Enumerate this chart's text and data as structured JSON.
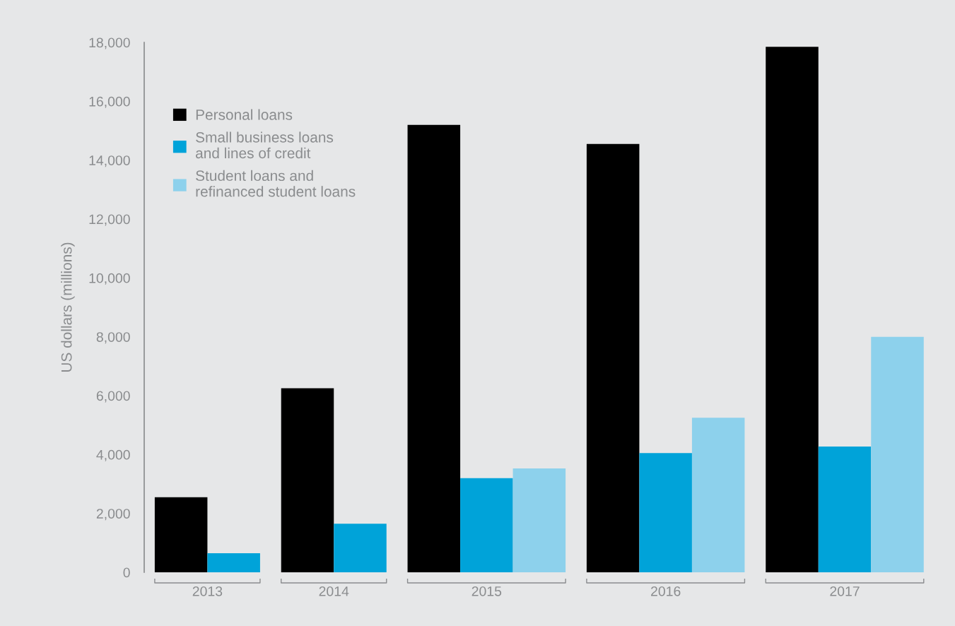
{
  "chart_data": {
    "type": "bar",
    "ylabel": "US dollars (millions)",
    "categories": [
      "2013",
      "2014",
      "2015",
      "2016",
      "2017"
    ],
    "series": [
      {
        "name": "Personal loans",
        "color": "#000000",
        "values": [
          2550,
          6250,
          15200,
          14550,
          17850
        ]
      },
      {
        "name": "Small business loans\nand lines of credit",
        "color": "#00a3d9",
        "values": [
          650,
          1650,
          3200,
          4050,
          4270
        ]
      },
      {
        "name": "Student loans and\nrefinanced student loans",
        "color": "#8dd1ec",
        "values": [
          null,
          null,
          3530,
          5250,
          8000
        ]
      }
    ],
    "ylim": [
      0,
      18000
    ],
    "yticks": [
      {
        "value": 0,
        "label": "0"
      },
      {
        "value": 2000,
        "label": "2,000"
      },
      {
        "value": 4000,
        "label": "4,000"
      },
      {
        "value": 6000,
        "label": "6,000"
      },
      {
        "value": 8000,
        "label": "8,000"
      },
      {
        "value": 10000,
        "label": "10,000"
      },
      {
        "value": 12000,
        "label": "12,000"
      },
      {
        "value": 14000,
        "label": "14,000"
      },
      {
        "value": 16000,
        "label": "16,000"
      },
      {
        "value": 18000,
        "label": "18,000"
      }
    ],
    "grid": false,
    "legend": "top left"
  }
}
